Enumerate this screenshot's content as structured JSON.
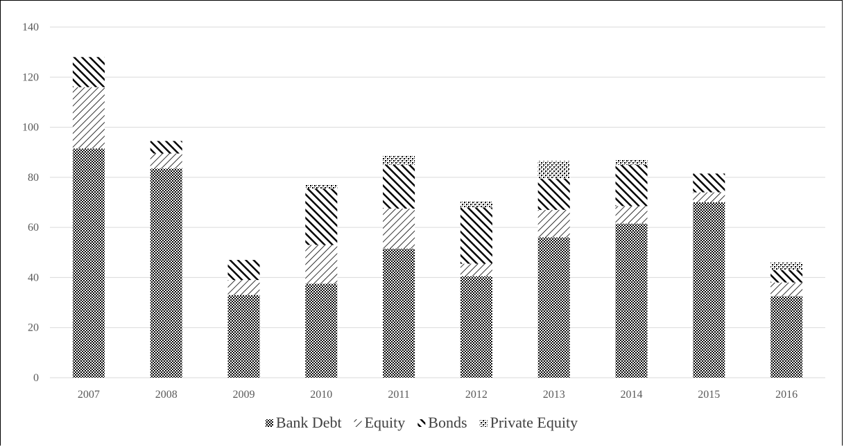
{
  "chart_data": {
    "type": "bar",
    "stacked": true,
    "categories": [
      "2007",
      "2008",
      "2009",
      "2010",
      "2011",
      "2012",
      "2013",
      "2014",
      "2015",
      "2016"
    ],
    "series": [
      {
        "name": "Bank Debt",
        "pattern": "checker",
        "values": [
          91.5,
          83.5,
          33,
          37.5,
          51.5,
          40.5,
          56,
          61.5,
          70,
          32.5
        ]
      },
      {
        "name": "Equity",
        "pattern": "diag-light",
        "values": [
          24.5,
          6,
          6,
          15.5,
          16,
          5,
          11,
          7,
          4,
          5.5
        ]
      },
      {
        "name": "Bonds",
        "pattern": "diag-heavy",
        "values": [
          12,
          5,
          8,
          22.5,
          17.5,
          22.5,
          12.5,
          16.5,
          7.5,
          5
        ]
      },
      {
        "name": "Private Equity",
        "pattern": "dots",
        "values": [
          0,
          0,
          0,
          1.5,
          3.5,
          2.5,
          7,
          2,
          0,
          3
        ]
      }
    ],
    "title": "",
    "xlabel": "",
    "ylabel": "",
    "ylim": [
      0,
      140
    ],
    "yticks": [
      0,
      20,
      40,
      60,
      80,
      100,
      120,
      140
    ],
    "grid": "horizontal",
    "legend_position": "bottom",
    "colors": {
      "pattern": "#000000",
      "grid": "#d9d9d9",
      "tick_text": "#595959",
      "legend_text": "#404040"
    }
  }
}
